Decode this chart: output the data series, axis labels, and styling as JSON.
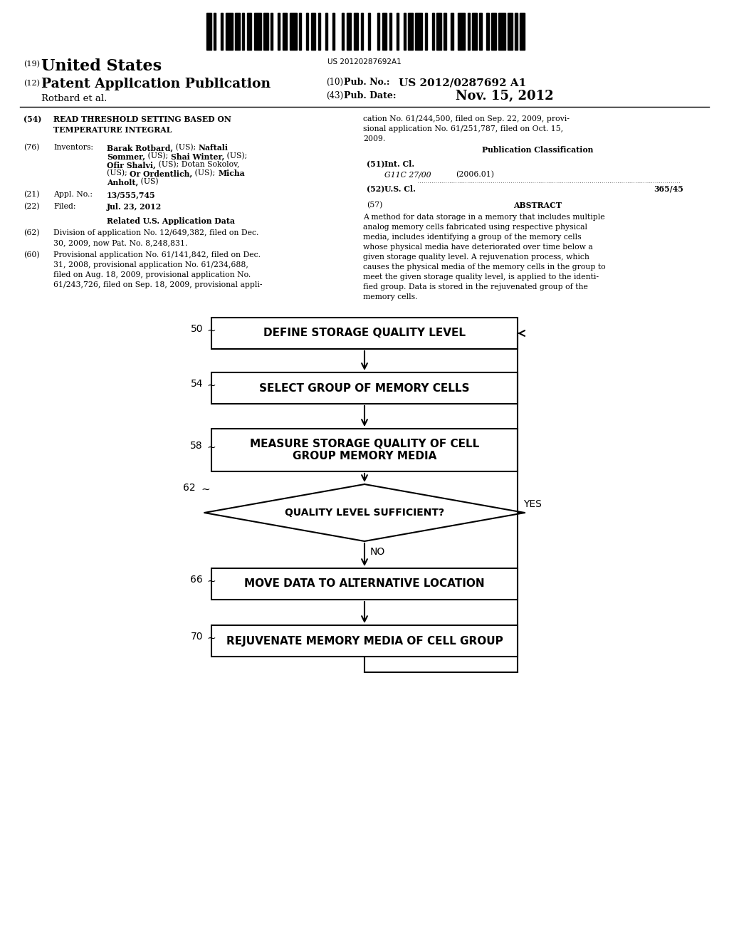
{
  "bg_color": "#ffffff",
  "barcode_text": "US 20120287692A1",
  "section54_title": "READ THRESHOLD SETTING BASED ON\nTEMPERATURE INTEGRAL",
  "section76_value_lines": [
    [
      "bold",
      "Barak Rotbard,",
      " (US); ",
      "bold",
      "Naftali"
    ],
    [
      "bold",
      "Sommer,",
      " (US); ",
      "bold",
      "Shai Winter,",
      " (US);"
    ],
    [
      "bold",
      "Ofir Shalvi,",
      " (US); Dotan Sokolov,"
    ],
    [
      "(US); ",
      "bold",
      "Or Ordentlich,",
      " (US); ",
      "bold",
      "Micha"
    ],
    [
      "bold",
      "Anholt,",
      " (US)"
    ]
  ],
  "right_cont": "cation No. 61/244,500, filed on Sep. 22, 2009, provi-\nsional application No. 61/251,787, filed on Oct. 15,\n2009.",
  "abstract_text": "A method for data storage in a memory that includes multiple\nanalog memory cells fabricated using respective physical\nmedia, includes identifying a group of the memory cells\nwhose physical media have deteriorated over time below a\ngiven storage quality level. A rejuvenation process, which\ncauses the physical media of the memory cells in the group to\nmeet the given storage quality level, is applied to the identi-\nfied group. Data is stored in the rejuvenated group of the\nmemory cells.",
  "flowchart": {
    "box1_text": "DEFINE STORAGE QUALITY LEVEL",
    "box1_label": "50",
    "box2_text": "SELECT GROUP OF MEMORY CELLS",
    "box2_label": "54",
    "box3_text": "MEASURE STORAGE QUALITY OF CELL\nGROUP MEMORY MEDIA",
    "box3_label": "58",
    "diamond_text": "QUALITY LEVEL SUFFICIENT?",
    "diamond_label": "62",
    "diamond_yes": "YES",
    "diamond_no": "NO",
    "box4_text": "MOVE DATA TO ALTERNATIVE LOCATION",
    "box4_label": "66",
    "box5_text": "REJUVENATE MEMORY MEDIA OF CELL GROUP",
    "box5_label": "70"
  },
  "barcode_pattern": [
    2,
    1,
    1,
    2,
    1,
    1,
    3,
    1,
    2,
    1,
    1,
    1,
    2,
    1,
    3,
    1,
    2,
    1,
    1,
    2,
    1,
    1,
    2,
    1,
    3,
    1,
    1,
    2,
    1,
    1,
    2,
    1,
    1,
    2,
    1,
    2,
    1,
    3,
    1,
    1,
    2,
    1,
    2,
    1,
    1,
    2,
    1,
    3,
    1,
    1,
    2,
    1,
    1,
    2,
    1,
    2,
    1,
    1,
    2,
    1,
    3,
    1,
    1,
    2,
    1,
    1,
    2,
    1,
    1,
    2,
    1,
    2,
    3,
    1,
    1,
    1,
    2,
    1,
    1,
    2,
    1,
    1,
    2,
    1,
    3,
    1,
    2,
    1,
    1,
    1,
    2,
    1
  ]
}
